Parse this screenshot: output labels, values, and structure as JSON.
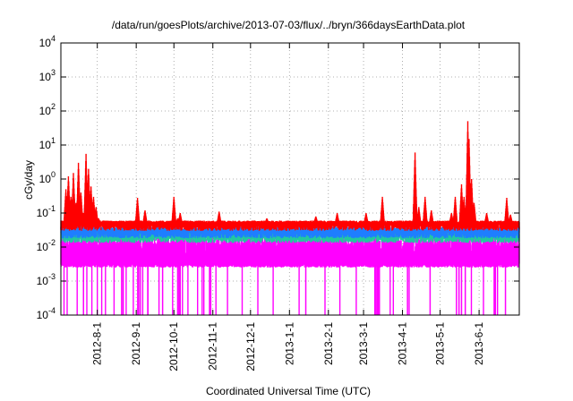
{
  "chart_data": {
    "type": "line",
    "title": "/data/run/goesPlots/archive/2013-07-03/flux/../bryn/366daysEarthData.plot",
    "xlabel": "Coordinated Universal Time (UTC)",
    "ylabel": "cGy/day",
    "yscale": "log",
    "ylim": [
      0.0001,
      10000
    ],
    "xlim": [
      "2012-07-03",
      "2013-07-03"
    ],
    "y_ticks": [
      {
        "value": 0.0001,
        "base": "10",
        "exp": "-4"
      },
      {
        "value": 0.001,
        "base": "10",
        "exp": "-3"
      },
      {
        "value": 0.01,
        "base": "10",
        "exp": "-2"
      },
      {
        "value": 0.1,
        "base": "10",
        "exp": "-1"
      },
      {
        "value": 1,
        "base": "10",
        "exp": "0"
      },
      {
        "value": 10,
        "base": "10",
        "exp": "1"
      },
      {
        "value": 100,
        "base": "10",
        "exp": "2"
      },
      {
        "value": 1000,
        "base": "10",
        "exp": "3"
      },
      {
        "value": 10000,
        "base": "10",
        "exp": "4"
      }
    ],
    "x_ticks": [
      {
        "date": "2012-08-01",
        "label": "2012-8-1"
      },
      {
        "date": "2012-09-01",
        "label": "2012-9-1"
      },
      {
        "date": "2012-10-01",
        "label": "2012-10-1"
      },
      {
        "date": "2012-11-01",
        "label": "2012-11-1"
      },
      {
        "date": "2012-12-01",
        "label": "2012-12-1"
      },
      {
        "date": "2013-01-01",
        "label": "2013-1-1"
      },
      {
        "date": "2013-02-01",
        "label": "2013-2-1"
      },
      {
        "date": "2013-03-01",
        "label": "2013-3-1"
      },
      {
        "date": "2013-04-01",
        "label": "2013-4-1"
      },
      {
        "date": "2013-05-01",
        "label": "2013-5-1"
      },
      {
        "date": "2013-06-01",
        "label": "2013-6-1"
      }
    ],
    "grid": true,
    "legend": "none",
    "series": [
      {
        "color": "#ff0000",
        "baseline": [
          0.05,
          0.06
        ],
        "points": [
          [
            "2012-07-03",
            0.06
          ],
          [
            "2012-07-07",
            0.5
          ],
          [
            "2012-07-09",
            1.2
          ],
          [
            "2012-07-11",
            0.3
          ],
          [
            "2012-07-13",
            1.5
          ],
          [
            "2012-07-15",
            0.2
          ],
          [
            "2012-07-17",
            3.0
          ],
          [
            "2012-07-19",
            0.4
          ],
          [
            "2012-07-21",
            0.1
          ],
          [
            "2012-07-23",
            5.5
          ],
          [
            "2012-07-25",
            2.0
          ],
          [
            "2012-07-27",
            0.6
          ],
          [
            "2012-07-29",
            0.3
          ],
          [
            "2012-07-31",
            0.15
          ],
          [
            "2012-08-02",
            0.07
          ],
          [
            "2012-09-02",
            0.28
          ],
          [
            "2012-09-05",
            0.06
          ],
          [
            "2012-09-08",
            0.12
          ],
          [
            "2012-10-01",
            0.3
          ],
          [
            "2012-10-04",
            0.07
          ],
          [
            "2012-10-06",
            0.1
          ],
          [
            "2012-11-06",
            0.11
          ],
          [
            "2012-12-14",
            0.07
          ],
          [
            "2013-01-22",
            0.08
          ],
          [
            "2013-02-08",
            0.1
          ],
          [
            "2013-03-03",
            0.1
          ],
          [
            "2013-03-16",
            0.3
          ],
          [
            "2013-04-11",
            6.0
          ],
          [
            "2013-04-14",
            0.15
          ],
          [
            "2013-04-19",
            0.3
          ],
          [
            "2013-04-24",
            0.12
          ],
          [
            "2013-05-10",
            0.1
          ],
          [
            "2013-05-13",
            0.3
          ],
          [
            "2013-05-18",
            0.7
          ],
          [
            "2013-05-20",
            0.3
          ],
          [
            "2013-05-23",
            50.0
          ],
          [
            "2013-05-24",
            15.0
          ],
          [
            "2013-05-26",
            1.0
          ],
          [
            "2013-05-28",
            0.2
          ],
          [
            "2013-06-07",
            0.1
          ],
          [
            "2013-06-23",
            0.28
          ],
          [
            "2013-06-26",
            0.09
          ]
        ]
      },
      {
        "color": "#1e7eff",
        "baseline": [
          0.03,
          0.04
        ],
        "points": [
          [
            "2012-07-07",
            0.35
          ],
          [
            "2012-07-09",
            0.8
          ],
          [
            "2012-07-13",
            1.0
          ],
          [
            "2012-07-17",
            1.8
          ],
          [
            "2012-07-23",
            2.5
          ],
          [
            "2012-07-25",
            1.2
          ],
          [
            "2012-07-27",
            0.4
          ],
          [
            "2012-07-29",
            0.2
          ],
          [
            "2012-09-02",
            0.15
          ],
          [
            "2012-10-01",
            0.16
          ],
          [
            "2013-03-16",
            0.15
          ],
          [
            "2013-04-11",
            3.0
          ],
          [
            "2013-04-19",
            0.2
          ],
          [
            "2013-05-13",
            0.2
          ],
          [
            "2013-05-18",
            0.4
          ],
          [
            "2013-05-23",
            20.0
          ],
          [
            "2013-05-24",
            6.0
          ],
          [
            "2013-05-26",
            0.5
          ],
          [
            "2013-06-23",
            0.15
          ]
        ]
      },
      {
        "color": "#22c8a0",
        "baseline": [
          0.022,
          0.028
        ],
        "points": [
          [
            "2012-07-09",
            0.3
          ],
          [
            "2012-07-17",
            0.5
          ],
          [
            "2012-07-23",
            0.6
          ],
          [
            "2013-04-11",
            0.8
          ],
          [
            "2013-05-23",
            2.0
          ],
          [
            "2013-05-24",
            1.0
          ]
        ]
      },
      {
        "color": "#ff00ff",
        "baseline": [
          0.003,
          0.02
        ],
        "points": []
      }
    ]
  }
}
